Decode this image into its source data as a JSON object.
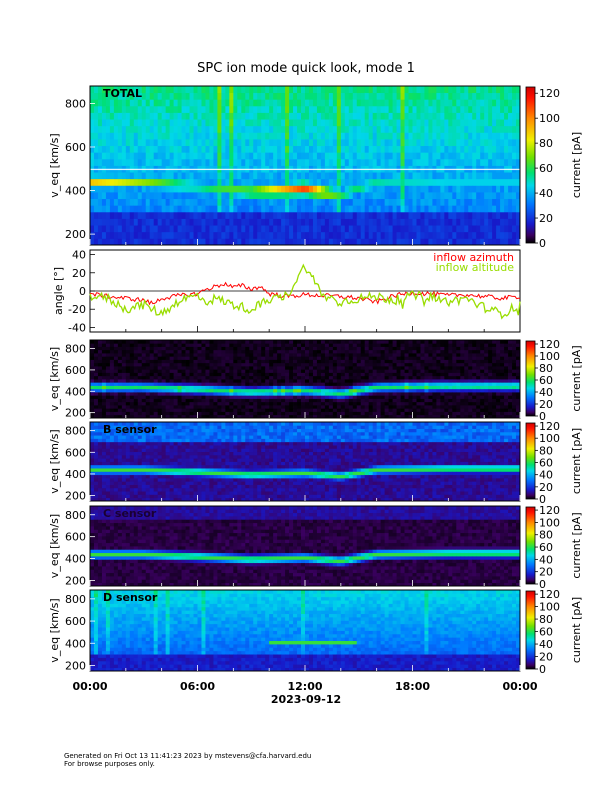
{
  "title": "SPC ion mode quick look, mode 1",
  "date_label": "2023-09-12",
  "footer": {
    "line1": "Generated on Fri Oct 13 11:41:23 2023 by mstevens@cfa.harvard.edu",
    "line2": "For browse purposes only."
  },
  "chart_data": [
    {
      "type": "heatmap",
      "panel_label": "TOTAL",
      "ylabel": "v_eq [km/s]",
      "ylim": [
        150,
        880
      ],
      "yticks": [
        200,
        400,
        600,
        800
      ],
      "xlim": [
        0,
        24
      ],
      "xticks": [
        "00:00",
        "06:00",
        "12:00",
        "18:00",
        "00:00"
      ],
      "colorbar": {
        "label": "current [pA]",
        "range": [
          0,
          125
        ],
        "ticks": [
          0,
          20,
          40,
          60,
          80,
          100,
          120
        ]
      },
      "features": {
        "background": "blue-cyan broadband, brighter cyan/green toward 600-850 km/s",
        "gap_band_kms": [
          480,
          500
        ],
        "peak_track": [
          [
            0,
            440
          ],
          [
            3,
            440
          ],
          [
            6,
            420
          ],
          [
            9,
            395
          ],
          [
            12,
            410
          ],
          [
            14,
            380
          ],
          [
            16,
            440
          ],
          [
            20,
            450
          ],
          [
            24,
            450
          ]
        ],
        "peak_level_pA": [
          [
            0,
            90
          ],
          [
            6,
            55
          ],
          [
            9,
            70
          ],
          [
            12,
            110
          ],
          [
            14,
            60
          ],
          [
            18,
            45
          ],
          [
            24,
            45
          ]
        ]
      }
    },
    {
      "type": "line",
      "ylabel": "angle [°]",
      "ylim": [
        -45,
        45
      ],
      "yticks": [
        -40,
        -20,
        0,
        20,
        40
      ],
      "xlim": [
        0,
        24
      ],
      "series": [
        {
          "name": "inflow azimuth",
          "color": "#ff0000",
          "x": [
            0,
            1,
            2,
            3,
            3.5,
            4,
            5,
            6,
            6.5,
            7,
            7.5,
            8,
            8.5,
            9,
            9.5,
            10,
            11,
            12,
            13,
            14,
            15,
            16,
            17,
            18,
            19,
            20,
            21,
            22,
            23,
            24
          ],
          "y": [
            -3,
            -6,
            -8,
            -10,
            -14,
            -8,
            -5,
            -3,
            2,
            5,
            8,
            4,
            6,
            2,
            5,
            -3,
            -6,
            -4,
            -5,
            -6,
            -8,
            -12,
            -5,
            -2,
            -3,
            -5,
            -4,
            -6,
            -8,
            -6
          ]
        },
        {
          "name": "inflow altitude",
          "color": "#99dd00",
          "x": [
            0,
            1,
            2,
            3,
            4,
            5,
            6,
            6.5,
            7,
            8,
            9,
            10,
            11,
            12,
            13,
            14,
            15,
            16,
            17,
            18,
            19,
            20,
            21,
            22,
            23,
            24
          ],
          "y": [
            -5,
            -8,
            -20,
            -15,
            -25,
            -10,
            -5,
            -12,
            -8,
            -15,
            -20,
            -10,
            -5,
            28,
            -5,
            -12,
            -8,
            -6,
            -10,
            -5,
            -6,
            -12,
            -8,
            -18,
            -25,
            -15
          ]
        }
      ]
    },
    {
      "type": "heatmap",
      "panel_label": "",
      "ylabel": "v_eq [km/s]",
      "ylim": [
        150,
        880
      ],
      "yticks": [
        200,
        400,
        600,
        800
      ],
      "colorbar": {
        "label": "current [pA]",
        "range": [
          0,
          125
        ],
        "ticks": [
          0,
          20,
          40,
          60,
          80,
          100,
          120
        ]
      },
      "features": {
        "background": "near black",
        "track": "narrow green/cyan band following the proton peak"
      }
    },
    {
      "type": "heatmap",
      "panel_label": "B sensor",
      "ylabel": "v_eq [km/s]",
      "ylim": [
        150,
        880
      ],
      "yticks": [
        200,
        400,
        600,
        800
      ],
      "colorbar": {
        "label": "current [pA]",
        "range": [
          0,
          125
        ],
        "ticks": [
          0,
          20,
          40,
          60,
          80,
          100,
          120
        ]
      },
      "features": {
        "background": "purple/blue with blue top band",
        "track": "green/cyan band following the proton peak"
      }
    },
    {
      "type": "heatmap",
      "panel_label": "C sensor",
      "ylabel": "v_eq [km/s]",
      "ylim": [
        150,
        880
      ],
      "yticks": [
        200,
        400,
        600,
        800
      ],
      "colorbar": {
        "label": "current [pA]",
        "range": [
          0,
          125
        ],
        "ticks": [
          0,
          20,
          40,
          60,
          80,
          100,
          120
        ]
      },
      "features": {
        "background": "dark purple/black",
        "track": "green/cyan band following the proton peak"
      }
    },
    {
      "type": "heatmap",
      "panel_label": "D sensor",
      "ylabel": "v_eq [km/s]",
      "ylim": [
        150,
        880
      ],
      "yticks": [
        200,
        400,
        600,
        800
      ],
      "colorbar": {
        "label": "current [pA]",
        "range": [
          0,
          125
        ],
        "ticks": [
          0,
          20,
          40,
          60,
          80,
          100,
          120
        ]
      },
      "features": {
        "background": "blue/cyan broadband",
        "track": "green/cyan band around 400-450 km/s"
      }
    }
  ]
}
